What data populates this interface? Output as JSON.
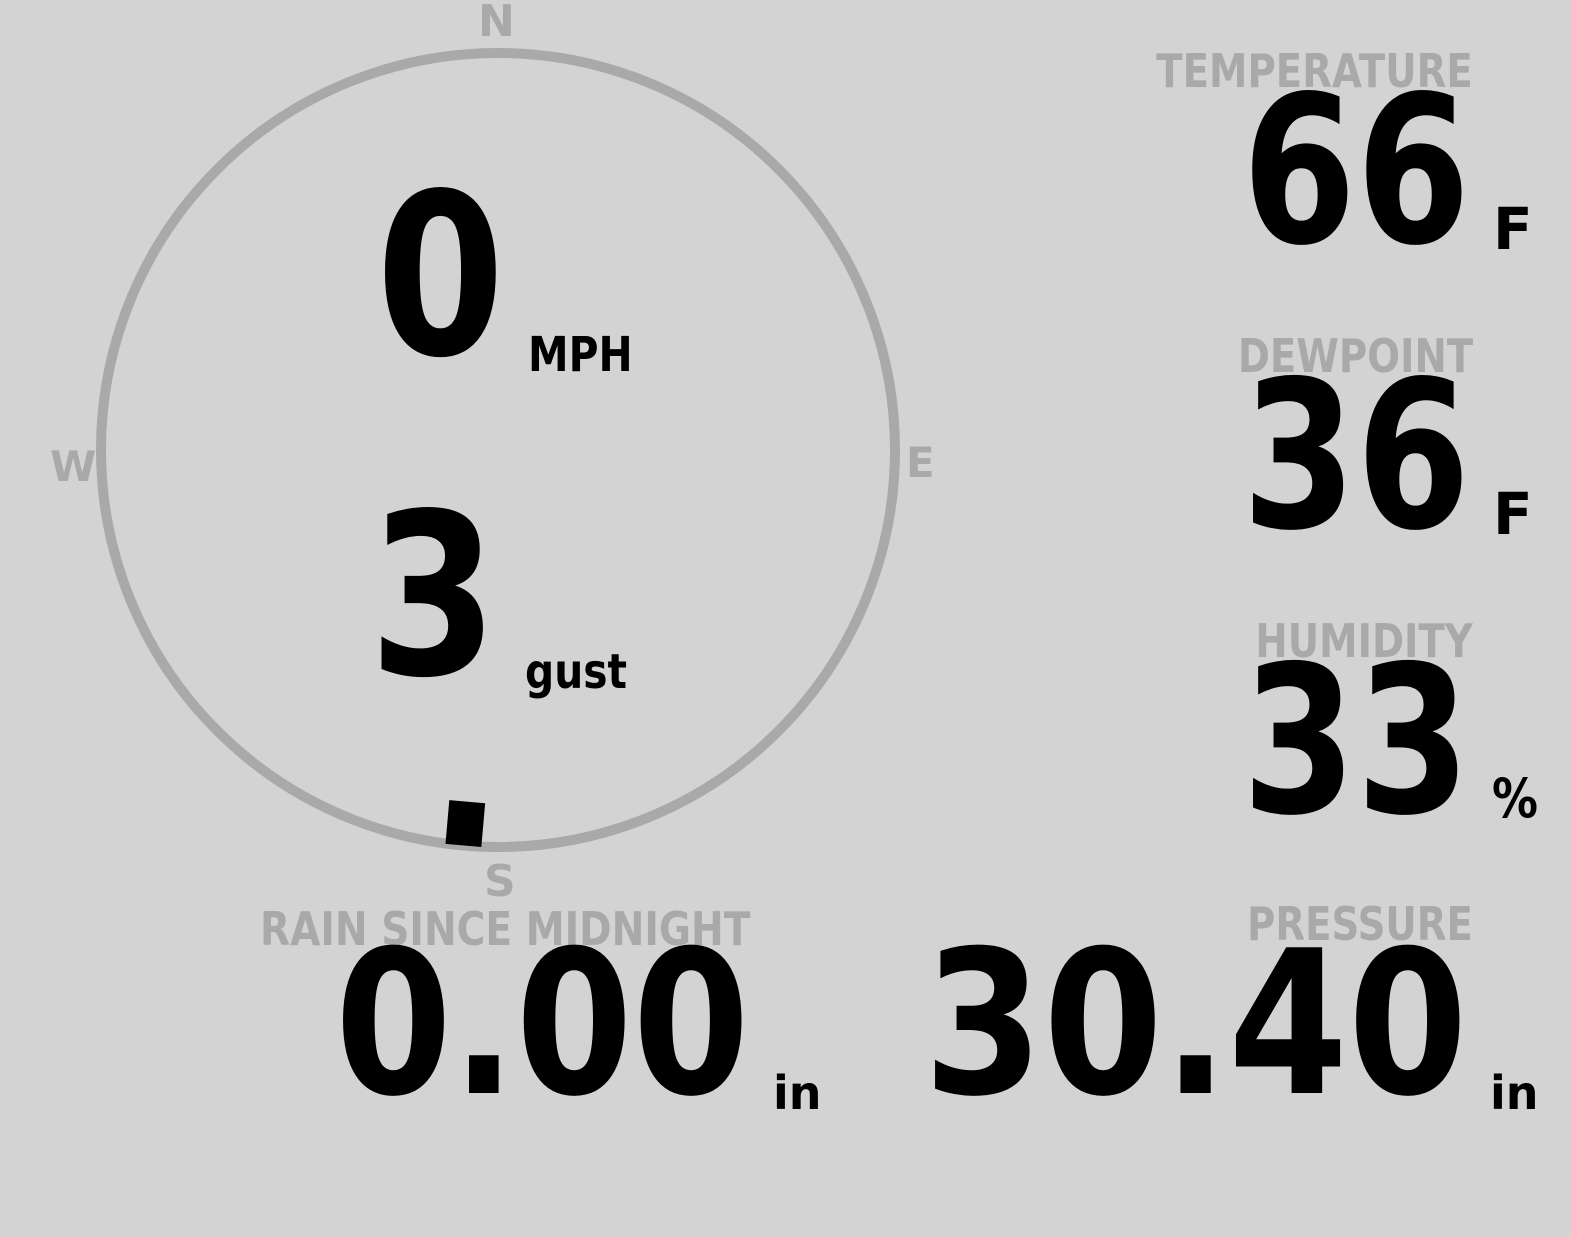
{
  "colors": {
    "background": "#d3d3d3",
    "label": "#a9a9a9",
    "value": "#000000"
  },
  "wind": {
    "cardinals": {
      "n": "N",
      "e": "E",
      "s": "S",
      "w": "W"
    },
    "speed": "0",
    "speed_unit": "MPH",
    "gust": "3",
    "gust_unit": "gust",
    "direction_deg": 185
  },
  "temperature": {
    "label": "TEMPERATURE",
    "value": "66",
    "unit": "F"
  },
  "dewpoint": {
    "label": "DEWPOINT",
    "value": "36",
    "unit": "F"
  },
  "humidity": {
    "label": "HUMIDITY",
    "value": "33",
    "unit": "%"
  },
  "rain": {
    "label": "RAIN SINCE MIDNIGHT",
    "value": "0.00",
    "unit": "in"
  },
  "pressure": {
    "label": "PRESSURE",
    "value": "30.40",
    "unit": "in"
  }
}
